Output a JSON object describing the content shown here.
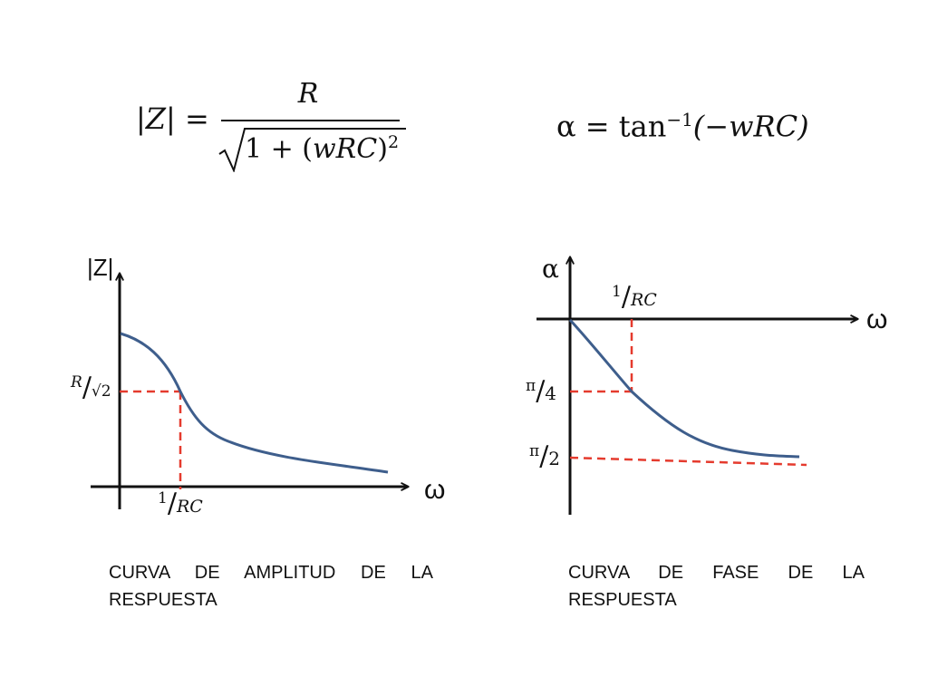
{
  "formulas": {
    "magnitude": {
      "lhs": "|Z| =",
      "numerator": "R",
      "denominator_prefix": "1 + (",
      "denominator_var": "wRC",
      "denominator_suffix": ")",
      "denominator_exp": "2"
    },
    "phase": {
      "lhs": "α =",
      "func": "tan",
      "exp": "−1",
      "arg": "(−wRC)"
    }
  },
  "amplitude_plot": {
    "y_axis_label": "|Z|",
    "x_axis_label": "ω",
    "y_marker": {
      "num": "R",
      "den": "√2"
    },
    "x_marker": {
      "num": "1",
      "den": "RC"
    },
    "caption_line1": "CURVA DE AMPLITUD DE LA",
    "caption_line2": "RESPUESTA"
  },
  "phase_plot": {
    "y_axis_label": "α",
    "x_axis_label": "ω",
    "x_marker": {
      "num": "1",
      "den": "RC"
    },
    "marker_quarter": {
      "num": "π",
      "den": "4"
    },
    "marker_half": {
      "num": "π",
      "den": "2"
    },
    "caption_line1": "CURVA DE FASE DE LA",
    "caption_line2": "RESPUESTA"
  },
  "colors": {
    "curve": "#3e5e8c",
    "guide": "#e53b2e",
    "axis": "#111111"
  }
}
